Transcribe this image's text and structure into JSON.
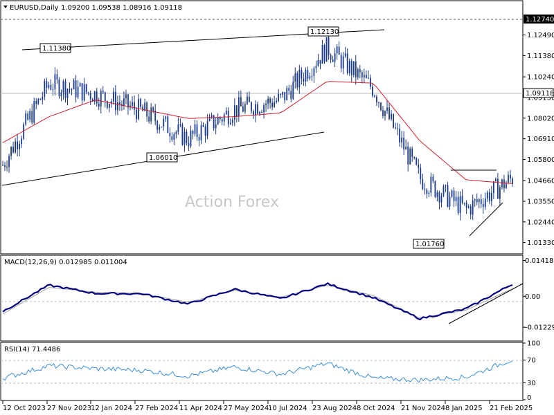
{
  "header": {
    "symbol": "EURUSD,Daily",
    "ohlc": "1.09200 1.09538 1.08916 1.09118"
  },
  "watermark": "Action Forex",
  "colors": {
    "candle": "#1a3a8a",
    "ma": "#d0202a",
    "macd": "#000080",
    "signal": "#a0a0a0",
    "rsi": "#3a8ed6",
    "line": "#000000"
  },
  "chart_data": [
    {
      "type": "line",
      "panel": "price",
      "title": "EURUSD,Daily",
      "ylim": [
        1.0076,
        1.1307
      ],
      "y_ticks": [
        "1.12490",
        "1.11380",
        "1.10240",
        "1.09130",
        "1.08020",
        "1.06910",
        "1.05800",
        "1.04660",
        "1.03550",
        "1.02440",
        "1.01330"
      ],
      "x_ticks": [
        "12 Oct 2023",
        "27 Nov 2023",
        "12 Jan 2024",
        "27 Feb 2024",
        "11 Apr 2024",
        "27 May 2024",
        "10 Jul 2024",
        "23 Aug 2024",
        "8 Oct 2024",
        "21 Nov 2024",
        "8 Jan 2025",
        "21 Feb 2025"
      ],
      "price_labels": [
        {
          "value": "1.12740",
          "level": 1.1274,
          "style": "dark"
        },
        {
          "value": "1.09118",
          "level": 1.09118,
          "style": "outline"
        }
      ],
      "annotations": [
        "1.11380",
        "1.12130",
        "1.06010",
        "1.01760"
      ],
      "series": [
        {
          "key": "price",
          "x": [
            "12 Oct 2023",
            "27 Nov 2023",
            "12 Jan 2024",
            "27 Feb 2024",
            "11 Apr 2024",
            "27 May 2024",
            "10 Jul 2024",
            "23 Aug 2024",
            "8 Oct 2024",
            "21 Nov 2024",
            "8 Jan 2025",
            "21 Feb 2025"
          ],
          "values": [
            1.055,
            1.099,
            1.093,
            1.084,
            1.069,
            1.085,
            1.09,
            1.118,
            1.096,
            1.048,
            1.031,
            1.048
          ]
        },
        {
          "key": "ma",
          "x": [
            "12 Oct 2023",
            "27 Nov 2023",
            "12 Jan 2024",
            "27 Feb 2024",
            "11 Apr 2024",
            "27 May 2024",
            "10 Jul 2024",
            "23 Aug 2024",
            "8 Oct 2024",
            "21 Nov 2024",
            "8 Jan 2025",
            "21 Feb 2025"
          ],
          "values": [
            1.067,
            1.081,
            1.09,
            1.085,
            1.08,
            1.081,
            1.083,
            1.1,
            1.099,
            1.068,
            1.047,
            1.045
          ]
        }
      ]
    },
    {
      "type": "line",
      "panel": "macd",
      "title": "MACD(12,26,9) 0.012985 0.011004",
      "ylim": [
        -0.0175,
        0.016
      ],
      "y_ticks": [
        "0.014188",
        "0.00",
        "-0.01229"
      ],
      "series": [
        {
          "key": "macd",
          "x": [
            "12 Oct 2023",
            "27 Nov 2023",
            "12 Jan 2024",
            "27 Feb 2024",
            "11 Apr 2024",
            "27 May 2024",
            "10 Jul 2024",
            "23 Aug 2024",
            "8 Oct 2024",
            "21 Nov 2024",
            "8 Jan 2025",
            "21 Feb 2025"
          ],
          "values": [
            -0.006,
            0.0044,
            0.0011,
            0.001,
            -0.0031,
            0.0028,
            -0.001,
            0.0049,
            -0.0006,
            -0.0089,
            -0.005,
            0.0048
          ]
        },
        {
          "key": "signal",
          "x": [
            "12 Oct 2023",
            "27 Nov 2023",
            "12 Jan 2024",
            "27 Feb 2024",
            "11 Apr 2024",
            "27 May 2024",
            "10 Jul 2024",
            "23 Aug 2024",
            "8 Oct 2024",
            "21 Nov 2024",
            "8 Jan 2025",
            "21 Feb 2025"
          ],
          "values": [
            -0.007,
            0.0035,
            0.0016,
            0.0011,
            -0.0024,
            0.0023,
            -0.0004,
            0.0044,
            0.0003,
            -0.0087,
            -0.0055,
            0.003
          ]
        }
      ]
    },
    {
      "type": "line",
      "panel": "rsi",
      "title": "RSI(14) 71.4486",
      "ylim": [
        0,
        100
      ],
      "y_ticks": [
        "100",
        "70",
        "30",
        "0"
      ],
      "series": [
        {
          "key": "rsi",
          "x": [
            "12 Oct 2023",
            "27 Nov 2023",
            "12 Jan 2024",
            "27 Feb 2024",
            "11 Apr 2024",
            "27 May 2024",
            "10 Jul 2024",
            "23 Aug 2024",
            "8 Oct 2024",
            "21 Nov 2024",
            "8 Jan 2025",
            "21 Feb 2025"
          ],
          "values": [
            38,
            60,
            55,
            52,
            42,
            58,
            45,
            64,
            38,
            35,
            40,
            71
          ]
        }
      ]
    }
  ]
}
